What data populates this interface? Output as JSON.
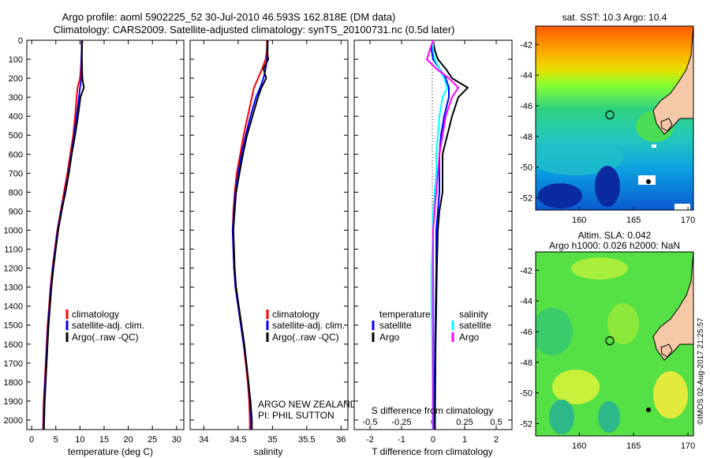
{
  "header": {
    "title_line1": "Argo profile: aoml 5902225_52 30-Jul-2010 46.593S 162.818E (DM data)",
    "title_line2": "Climatology: CARS2009. Satellite-adjusted climatology: synTS_20100731.nc (0.5d later)"
  },
  "colors": {
    "climatology": "#ff0000",
    "satellite_adj": "#0000ff",
    "argo": "#000000",
    "salinity_satellite": "#00ffff",
    "salinity_argo": "#ff00ff"
  },
  "depth_axis": {
    "ylim": [
      0,
      2050
    ],
    "ticks": [
      0,
      100,
      200,
      300,
      400,
      500,
      600,
      700,
      800,
      900,
      1000,
      1100,
      1200,
      1300,
      1400,
      1500,
      1600,
      1700,
      1800,
      1900,
      2000
    ]
  },
  "chart_data": [
    {
      "type": "line",
      "name": "temperature-panel",
      "xlabel": "temperature (deg C)",
      "xlim": [
        -1,
        31.5
      ],
      "xticks": [
        0,
        5,
        10,
        15,
        20,
        25,
        30
      ],
      "legend": [
        "climatology",
        "satellite-adj. clim.",
        "Argo(..raw -QC)"
      ],
      "depth": [
        0,
        100,
        200,
        250,
        300,
        400,
        500,
        600,
        700,
        800,
        900,
        1000,
        1100,
        1200,
        1300,
        1400,
        1500,
        1600,
        1700,
        1800,
        1900,
        2000,
        2050
      ],
      "series": [
        {
          "key": "climatology",
          "values": [
            10.5,
            10.3,
            10.0,
            9.5,
            9.3,
            9.0,
            8.6,
            8.0,
            7.4,
            6.7,
            6.0,
            5.3,
            4.8,
            4.3,
            3.9,
            3.6,
            3.3,
            3.1,
            2.9,
            2.7,
            2.5,
            2.4,
            2.35
          ]
        },
        {
          "key": "satellite_adj",
          "values": [
            10.4,
            10.3,
            10.3,
            10.0,
            9.8,
            9.3,
            8.8,
            8.2,
            7.6,
            6.9,
            6.1,
            5.4,
            4.9,
            4.4,
            4.0,
            3.7,
            3.4,
            3.2,
            3.0,
            2.8,
            2.6,
            2.5,
            2.45
          ]
        },
        {
          "key": "argo",
          "values": [
            10.4,
            10.4,
            10.5,
            10.8,
            10.1,
            9.6,
            9.0,
            8.3,
            7.7,
            7.0,
            6.2,
            5.5,
            5.0,
            4.5,
            4.1,
            3.8,
            3.5,
            3.3,
            3.1,
            2.9,
            2.7,
            2.6,
            2.55
          ]
        }
      ]
    },
    {
      "type": "line",
      "name": "salinity-panel",
      "xlabel": "salinity",
      "xlim": [
        33.8,
        36.1
      ],
      "xticks": [
        34,
        34.5,
        35,
        35.5,
        36
      ],
      "legend": [
        "climatology",
        "satellite-adj. clim.",
        "Argo(..raw -QC)"
      ],
      "annotations": [
        "ARGO NEW ZEALAND",
        "PI: PHIL SUTTON"
      ],
      "depth": [
        0,
        50,
        100,
        150,
        200,
        250,
        300,
        400,
        500,
        600,
        700,
        800,
        900,
        1000,
        1100,
        1200,
        1300,
        1400,
        1500,
        1600,
        1700,
        1800,
        1900,
        2000,
        2050
      ],
      "series": [
        {
          "key": "climatology",
          "values": [
            34.92,
            34.92,
            34.9,
            34.85,
            34.79,
            34.73,
            34.7,
            34.64,
            34.58,
            34.53,
            34.48,
            34.45,
            34.43,
            34.42,
            34.43,
            34.44,
            34.46,
            34.5,
            34.54,
            34.58,
            34.61,
            34.64,
            34.66,
            34.67,
            34.67
          ]
        },
        {
          "key": "satellite_adj",
          "values": [
            34.93,
            34.93,
            34.92,
            34.9,
            34.87,
            34.82,
            34.76,
            34.68,
            34.61,
            34.55,
            34.5,
            34.46,
            34.44,
            34.42,
            34.43,
            34.44,
            34.46,
            34.5,
            34.54,
            34.58,
            34.62,
            34.65,
            34.67,
            34.69,
            34.69
          ]
        },
        {
          "key": "argo",
          "values": [
            34.93,
            34.92,
            34.94,
            34.87,
            34.91,
            34.84,
            34.79,
            34.71,
            34.63,
            34.57,
            34.52,
            34.47,
            34.45,
            34.43,
            34.44,
            34.45,
            34.47,
            34.51,
            34.55,
            34.59,
            34.62,
            34.65,
            34.68,
            34.7,
            34.7
          ]
        }
      ]
    },
    {
      "type": "line",
      "name": "difference-panel",
      "xlabel": "T difference from climatology",
      "xlabel_top": "S difference from climatology",
      "xlim": [
        -2.5,
        2.5
      ],
      "xticks": [
        -2,
        -1,
        0,
        1,
        2
      ],
      "s_xticks_labels": [
        "-0.5",
        "-0.25",
        "0",
        "0.25",
        "0.5"
      ],
      "legend_temperature": {
        "title": "temperature",
        "items": [
          "satellite",
          "Argo"
        ]
      },
      "legend_salinity": {
        "title": "salinity",
        "items": [
          "satellite",
          "Argo"
        ]
      },
      "depth": [
        0,
        50,
        100,
        150,
        200,
        250,
        300,
        400,
        500,
        600,
        700,
        800,
        900,
        1000,
        1200,
        1400,
        1600,
        1800,
        2000,
        2050
      ],
      "series": [
        {
          "key": "satellite_adj",
          "group": "temperature",
          "values": [
            0.0,
            -0.05,
            0.0,
            0.2,
            0.4,
            0.5,
            0.5,
            0.35,
            0.25,
            0.2,
            0.2,
            0.2,
            0.15,
            0.1,
            0.1,
            0.08,
            0.06,
            0.05,
            0.04,
            0.04
          ]
        },
        {
          "key": "argo",
          "group": "temperature",
          "values": [
            0.0,
            0.05,
            0.15,
            0.4,
            0.6,
            1.1,
            0.8,
            0.6,
            0.45,
            0.3,
            0.3,
            0.3,
            0.2,
            0.15,
            0.12,
            0.1,
            0.08,
            0.07,
            0.06,
            0.06
          ]
        },
        {
          "key": "salinity_satellite",
          "group": "salinity",
          "values": [
            0.0,
            0.0,
            0.05,
            0.2,
            0.35,
            0.45,
            0.3,
            0.2,
            0.15,
            0.1,
            0.1,
            0.05,
            0.0,
            0.0,
            -0.05,
            -0.05,
            -0.03,
            -0.02,
            -0.02,
            -0.02
          ]
        },
        {
          "key": "salinity_argo",
          "group": "salinity",
          "values": [
            0.0,
            -0.1,
            -0.2,
            0.1,
            0.5,
            0.8,
            0.6,
            0.4,
            0.3,
            0.2,
            0.15,
            0.1,
            0.05,
            0.0,
            0.0,
            0.0,
            0.0,
            0.0,
            0.0,
            0.0
          ]
        }
      ]
    },
    {
      "type": "heatmap",
      "name": "sst-map",
      "title": "sat. SST: 10.3 Argo: 10.4",
      "xlim": [
        156,
        170.5
      ],
      "ylim": [
        -52.8,
        -40.8
      ],
      "xticks": [
        160,
        165,
        170
      ],
      "yticks": [
        -42,
        -44,
        -46,
        -48,
        -50,
        -52
      ],
      "argo_position": {
        "lon": 162.818,
        "lat": -46.593
      }
    },
    {
      "type": "heatmap",
      "name": "sla-map",
      "title": "Altim. SLA: 0.042",
      "subtitle": "Argo h1000: 0.026 h2000: NaN",
      "xlim": [
        156,
        170.5
      ],
      "ylim": [
        -52.8,
        -40.8
      ],
      "xticks": [
        160,
        165,
        170
      ],
      "yticks": [
        -42,
        -44,
        -46,
        -48,
        -50,
        -52
      ],
      "argo_position": {
        "lon": 162.818,
        "lat": -46.593
      }
    }
  ],
  "credit": "©IMOS 02-Aug-2017 21:25:57"
}
